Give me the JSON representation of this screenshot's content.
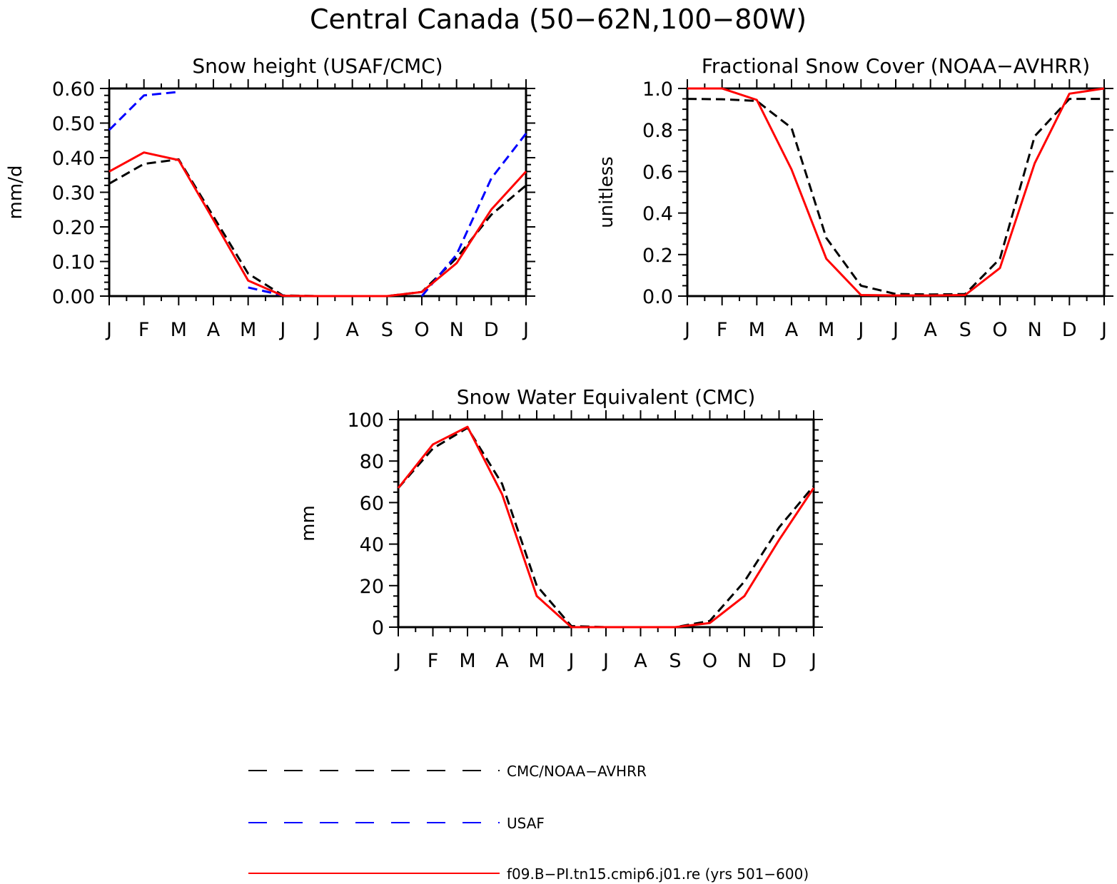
{
  "figure": {
    "title": "Central Canada (50−62N,100−80W)"
  },
  "legend": {
    "position": "bottom-left",
    "entries": [
      {
        "label": "CMC/NOAA−AVHRR",
        "color": "#000000",
        "style": "dashed"
      },
      {
        "label": "USAF",
        "color": "#0000ff",
        "style": "dashed"
      },
      {
        "label": "f09.B−PI.tn15.cmip6.j01.re (yrs 501−600)",
        "color": "#ff0000",
        "style": "solid"
      }
    ]
  },
  "chart_data": [
    {
      "type": "line",
      "title": "Snow height (USAF/CMC)",
      "xlabel": "",
      "ylabel": "mm/d",
      "categories": [
        "J",
        "F",
        "M",
        "A",
        "M",
        "J",
        "J",
        "A",
        "S",
        "O",
        "N",
        "D",
        "J"
      ],
      "yticks": [
        "0.00",
        "0.10",
        "0.20",
        "0.30",
        "0.40",
        "0.50",
        "0.60"
      ],
      "ylim": [
        0,
        0.6
      ],
      "grid": false,
      "series": [
        {
          "name": "CMC/NOAA−AVHRR",
          "color": "#000000",
          "style": "dashed",
          "values": [
            0.325,
            0.382,
            0.395,
            0.23,
            0.065,
            0.002,
            0.0,
            0.0,
            0.0,
            0.012,
            0.11,
            0.235,
            0.32
          ]
        },
        {
          "name": "USAF",
          "color": "#0000ff",
          "style": "dashed",
          "values": [
            0.48,
            0.58,
            0.59,
            null,
            0.025,
            0.002,
            null,
            null,
            null,
            0.0,
            0.12,
            0.34,
            0.47
          ]
        },
        {
          "name": "f09.B−PI.tn15.cmip6.j01.re (yrs 501−600)",
          "color": "#ff0000",
          "style": "solid",
          "values": [
            0.36,
            0.415,
            0.393,
            0.22,
            0.045,
            0.001,
            0.0,
            0.0,
            0.0,
            0.012,
            0.095,
            0.25,
            0.36
          ]
        }
      ]
    },
    {
      "type": "line",
      "title": "Fractional Snow Cover (NOAA−AVHRR)",
      "xlabel": "",
      "ylabel": "unitless",
      "categories": [
        "J",
        "F",
        "M",
        "A",
        "M",
        "J",
        "J",
        "A",
        "S",
        "O",
        "N",
        "D",
        "J"
      ],
      "yticks": [
        "0.0",
        "0.2",
        "0.4",
        "0.6",
        "0.8",
        "1.0"
      ],
      "ylim": [
        0,
        1.0
      ],
      "grid": false,
      "series": [
        {
          "name": "CMC/NOAA−AVHRR",
          "color": "#000000",
          "style": "dashed",
          "values": [
            0.95,
            0.948,
            0.94,
            0.81,
            0.28,
            0.05,
            0.01,
            0.008,
            0.01,
            0.18,
            0.77,
            0.95,
            0.95
          ]
        },
        {
          "name": "f09.B−PI.tn15.cmip6.j01.re (yrs 501−600)",
          "color": "#ff0000",
          "style": "solid",
          "values": [
            1.0,
            1.0,
            0.945,
            0.61,
            0.18,
            0.005,
            0.003,
            0.003,
            0.005,
            0.135,
            0.64,
            0.975,
            1.0
          ]
        }
      ]
    },
    {
      "type": "line",
      "title": "Snow Water Equivalent (CMC)",
      "xlabel": "",
      "ylabel": "mm",
      "categories": [
        "J",
        "F",
        "M",
        "A",
        "M",
        "J",
        "J",
        "A",
        "S",
        "O",
        "N",
        "D",
        "J"
      ],
      "yticks": [
        "0",
        "20",
        "40",
        "60",
        "80",
        "100"
      ],
      "ylim": [
        0,
        100
      ],
      "grid": false,
      "series": [
        {
          "name": "CMC/NOAA−AVHRR",
          "color": "#000000",
          "style": "dashed",
          "values": [
            67,
            86,
            96,
            69,
            20,
            0.5,
            0,
            0,
            0,
            3,
            22,
            48,
            68
          ]
        },
        {
          "name": "f09.B−PI.tn15.cmip6.j01.re (yrs 501−600)",
          "color": "#ff0000",
          "style": "solid",
          "values": [
            67,
            88,
            96.5,
            64,
            15,
            0,
            0,
            0,
            0,
            2,
            15,
            42,
            67
          ]
        }
      ]
    }
  ]
}
